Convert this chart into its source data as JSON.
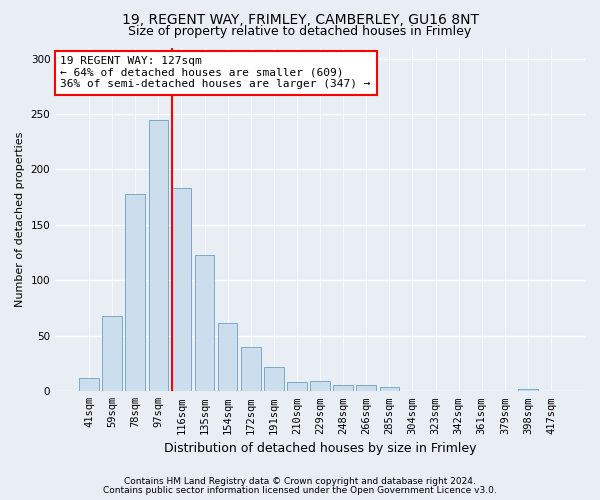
{
  "title1": "19, REGENT WAY, FRIMLEY, CAMBERLEY, GU16 8NT",
  "title2": "Size of property relative to detached houses in Frimley",
  "xlabel": "Distribution of detached houses by size in Frimley",
  "ylabel": "Number of detached properties",
  "categories": [
    "41sqm",
    "59sqm",
    "78sqm",
    "97sqm",
    "116sqm",
    "135sqm",
    "154sqm",
    "172sqm",
    "191sqm",
    "210sqm",
    "229sqm",
    "248sqm",
    "266sqm",
    "285sqm",
    "304sqm",
    "323sqm",
    "342sqm",
    "361sqm",
    "379sqm",
    "398sqm",
    "417sqm"
  ],
  "values": [
    12,
    68,
    178,
    245,
    183,
    123,
    62,
    40,
    22,
    8,
    9,
    6,
    6,
    4,
    0,
    0,
    0,
    0,
    0,
    2,
    0
  ],
  "bar_color": "#ccdded",
  "bar_edge_color": "#7aaac8",
  "vline_x": 3.57,
  "vline_color": "red",
  "annotation_title": "19 REGENT WAY: 127sqm",
  "annotation_line1": "← 64% of detached houses are smaller (609)",
  "annotation_line2": "36% of semi-detached houses are larger (347) →",
  "annotation_box_color": "white",
  "annotation_box_edge_color": "red",
  "ylim": [
    0,
    310
  ],
  "yticks": [
    0,
    50,
    100,
    150,
    200,
    250,
    300
  ],
  "footnote1": "Contains HM Land Registry data © Crown copyright and database right 2024.",
  "footnote2": "Contains public sector information licensed under the Open Government Licence v3.0.",
  "bg_color": "#e8eef4",
  "plot_bg_color": "#e8eef4",
  "title_fontsize": 10,
  "subtitle_fontsize": 9,
  "ylabel_fontsize": 8,
  "xlabel_fontsize": 9,
  "tick_fontsize": 7.5,
  "annot_fontsize": 8
}
